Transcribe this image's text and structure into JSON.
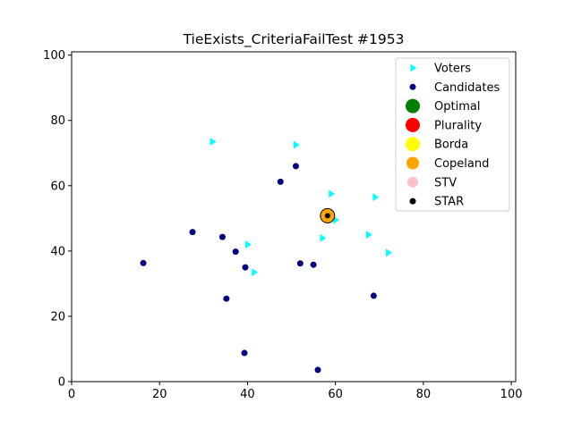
{
  "chart_data": {
    "type": "scatter",
    "title": "TieExists_CriteriaFailTest #1953",
    "xlabel": "",
    "ylabel": "",
    "xlim": [
      0,
      101
    ],
    "ylim": [
      0,
      101
    ],
    "xticks": [
      0,
      20,
      40,
      60,
      80,
      100
    ],
    "yticks": [
      0,
      20,
      40,
      60,
      80,
      100
    ],
    "grid": false,
    "legend_position": "top-right",
    "series": [
      {
        "name": "Voters",
        "marker": "triangle-right",
        "color": "#00ffff",
        "points": [
          [
            32,
            73.5
          ],
          [
            51,
            72.5
          ],
          [
            59,
            57.5
          ],
          [
            69,
            56.5
          ],
          [
            58,
            51.5
          ],
          [
            60,
            49.5
          ],
          [
            57,
            44
          ],
          [
            67.5,
            45
          ],
          [
            72,
            39.5
          ],
          [
            40,
            42
          ],
          [
            41.5,
            33.5
          ]
        ]
      },
      {
        "name": "Candidates",
        "marker": "circle",
        "color": "#000080",
        "points": [
          [
            51,
            66
          ],
          [
            47.5,
            61.2
          ],
          [
            27.5,
            45.8
          ],
          [
            34.3,
            44.3
          ],
          [
            37.3,
            39.8
          ],
          [
            16.3,
            36.3
          ],
          [
            39.5,
            35
          ],
          [
            52,
            36.2
          ],
          [
            55,
            35.8
          ],
          [
            35.2,
            25.4
          ],
          [
            68.7,
            26.3
          ],
          [
            39.3,
            8.8
          ],
          [
            56,
            3.6
          ]
        ]
      },
      {
        "name": "Optimal",
        "marker": "circle",
        "color": "#008000",
        "points": []
      },
      {
        "name": "Plurality",
        "marker": "circle",
        "color": "#ff0000",
        "points": []
      },
      {
        "name": "Borda",
        "marker": "circle",
        "color": "#ffff00",
        "points": []
      },
      {
        "name": "Copeland",
        "marker": "circle",
        "color": "#ffa500",
        "points": [
          [
            58.2,
            50.8
          ]
        ]
      },
      {
        "name": "STV",
        "marker": "circle",
        "color": "#ffc0cb",
        "points": []
      },
      {
        "name": "STAR",
        "marker": "circle",
        "color": "#000000",
        "points": [
          [
            58.2,
            50.8
          ]
        ]
      }
    ]
  }
}
